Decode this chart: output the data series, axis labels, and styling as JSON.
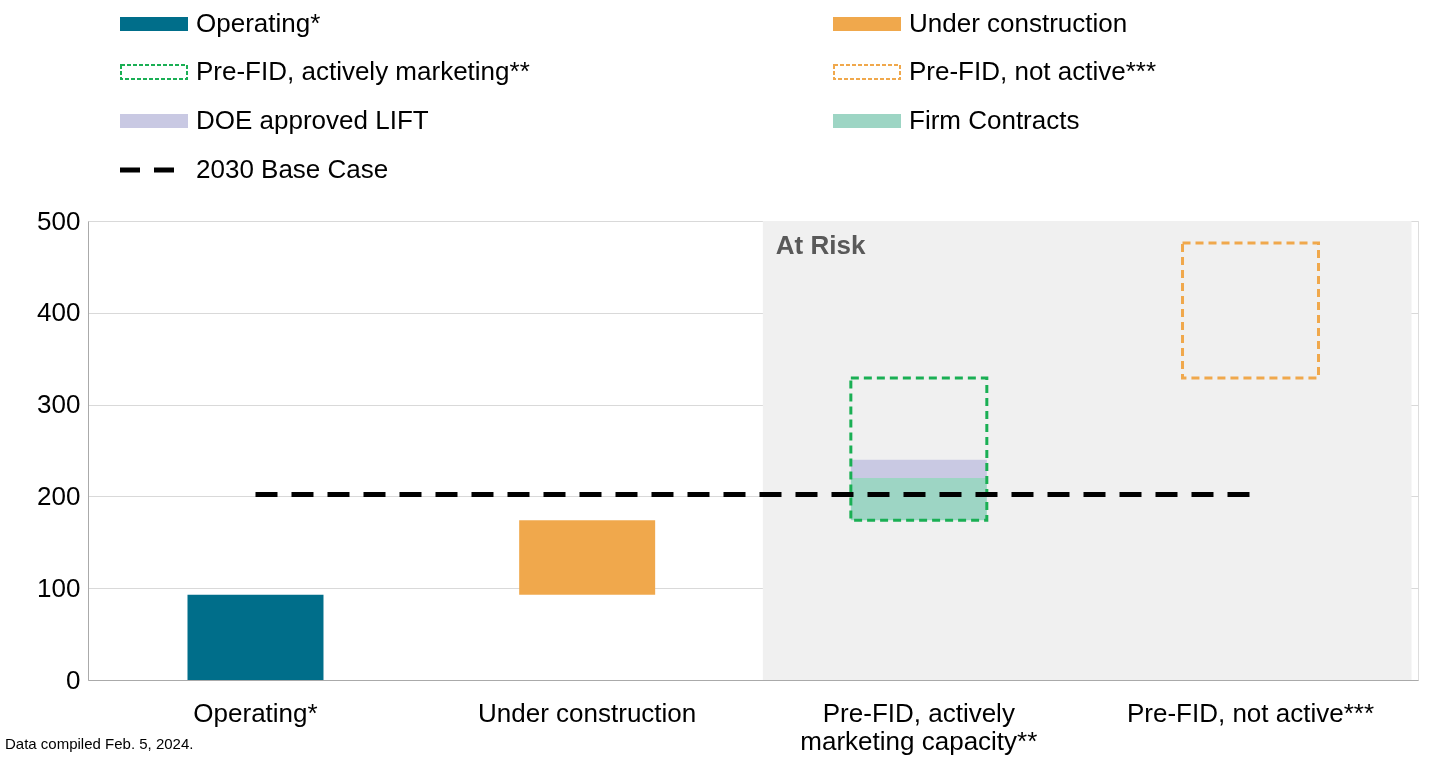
{
  "chart_data": {
    "type": "bar",
    "categories": [
      "Operating*",
      "Under construction",
      "Pre-FID, actively marketing capacity**",
      "Pre-FID, not active***"
    ],
    "series": [
      {
        "name": "Operating*",
        "color": "#006e8a",
        "values": [
          93,
          null,
          null,
          null
        ],
        "base": [
          0,
          null,
          null,
          null
        ]
      },
      {
        "name": "Under construction",
        "color": "#f0a84c",
        "values": [
          null,
          81,
          null,
          null
        ],
        "base": [
          null,
          93,
          null,
          null
        ]
      },
      {
        "name": "Pre-FID, actively marketing**",
        "color": "#1aaf54",
        "line_style": "dashed",
        "values": [
          null,
          null,
          155,
          null
        ],
        "base": [
          null,
          null,
          174,
          null
        ]
      },
      {
        "name": "Pre-FID, not active***",
        "color": "#f0a84c",
        "line_style": "dashed",
        "values": [
          null,
          null,
          null,
          147
        ],
        "base": [
          null,
          null,
          null,
          329
        ]
      },
      {
        "name": "DOE approved LIFT",
        "color": "#c9c9e3",
        "values": [
          null,
          null,
          20,
          null
        ],
        "base": [
          null,
          null,
          220,
          null
        ]
      },
      {
        "name": "Firm Contracts",
        "color": "#9dd5c4",
        "values": [
          null,
          null,
          46,
          null
        ],
        "base": [
          null,
          null,
          174,
          null
        ]
      }
    ],
    "ref_lines": [
      {
        "axis": "y",
        "value": 202,
        "label": "2030 Base Case",
        "color": "#000000",
        "line_style": "dashed"
      }
    ],
    "bands": [
      {
        "axis": "x",
        "from": "Pre-FID, actively marketing capacity**",
        "to": "Pre-FID, not active***",
        "label": "At Risk",
        "color": "#f0f0f0"
      }
    ],
    "ylim": [
      0,
      500
    ],
    "yticks": [
      0,
      100,
      200,
      300,
      400,
      500
    ],
    "grid": "y",
    "legend": "top",
    "annotations": [
      "Data compiled Feb. 5, 2024."
    ]
  }
}
